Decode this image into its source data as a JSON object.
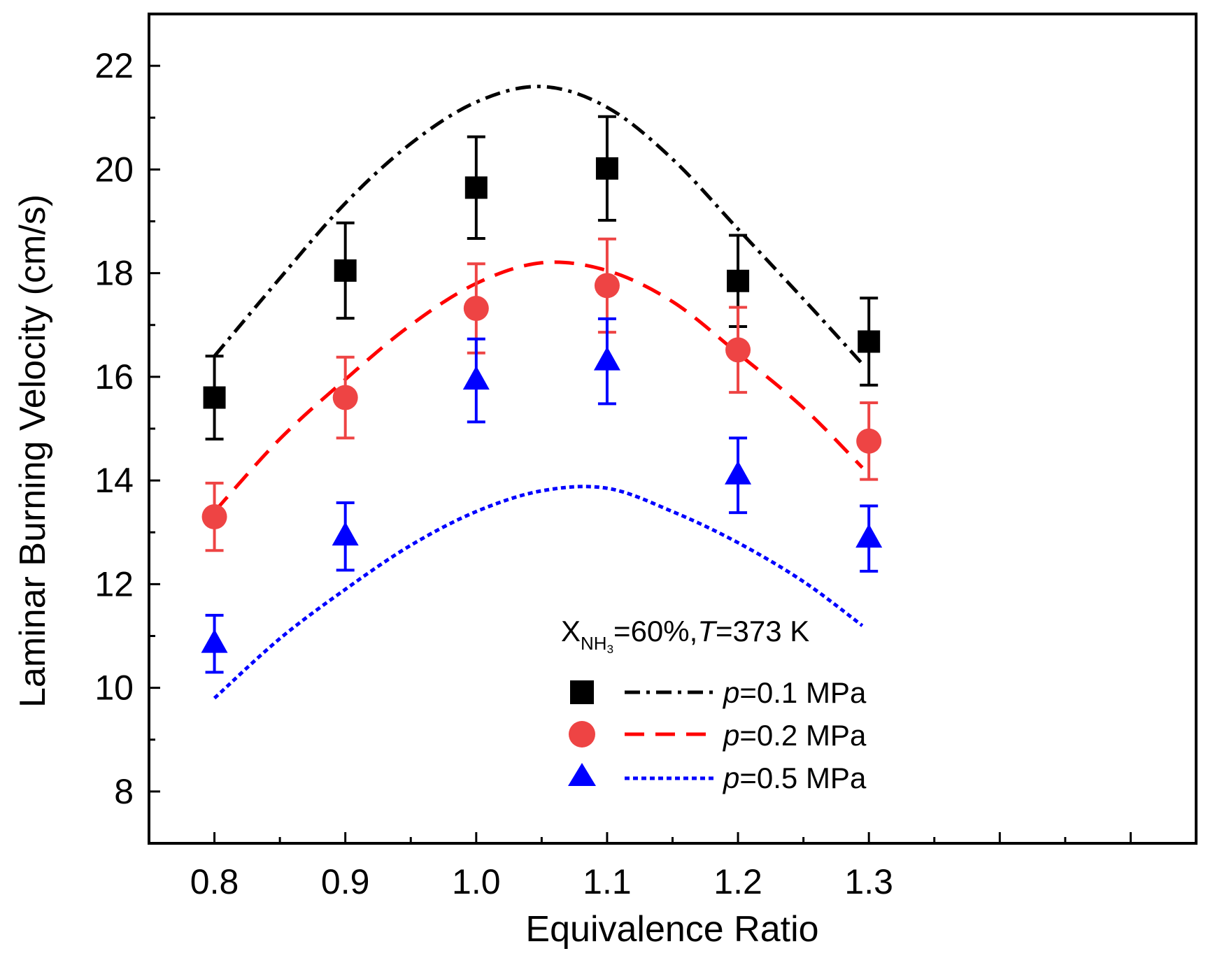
{
  "chart_data": {
    "type": "scatter",
    "xlabel": "Equivalence Ratio",
    "ylabel": "Laminar Burning Velocity (cm/s)",
    "xlim": [
      0.75,
      1.55
    ],
    "ylim": [
      7.0,
      23.0
    ],
    "x_ticks": [
      0.8,
      0.9,
      1.0,
      1.1,
      1.2,
      1.3
    ],
    "x_tick_labels": [
      "0.8",
      "0.9",
      "1.0",
      "1.1",
      "1.2",
      "1.3"
    ],
    "y_ticks": [
      8,
      10,
      12,
      14,
      16,
      18,
      20,
      22
    ],
    "y_tick_labels": [
      "8",
      "10",
      "12",
      "14",
      "16",
      "18",
      "20",
      "22"
    ],
    "annotation": {
      "prefix": "X",
      "subscript": "NH",
      "subsubscript": "3",
      "mid": "=60%,",
      "T_symbol": "T",
      "suffix": "=373 K"
    },
    "legend_position": "center-right",
    "series": [
      {
        "name": "p=0.1 MPa",
        "label_symbol": "p",
        "label_rest": "=0.1 MPa",
        "marker": "square",
        "line_style": "dash-dot",
        "color": "#000000",
        "line_color": "#000000",
        "x": [
          0.8,
          0.9,
          1.0,
          1.1,
          1.2,
          1.3
        ],
        "y": [
          15.6,
          18.05,
          19.65,
          20.02,
          17.85,
          16.68
        ],
        "err": [
          0.8,
          0.92,
          0.98,
          1.0,
          0.88,
          0.84
        ],
        "model_x": [
          0.8,
          0.85,
          0.9,
          0.95,
          1.0,
          1.05,
          1.1,
          1.15,
          1.2,
          1.25,
          1.295
        ],
        "model_y": [
          16.4,
          17.9,
          19.35,
          20.5,
          21.3,
          21.6,
          21.2,
          20.2,
          18.85,
          17.5,
          16.25
        ]
      },
      {
        "name": "p=0.2 MPa",
        "label_symbol": "p",
        "label_rest": "=0.2 MPa",
        "marker": "circle",
        "line_style": "dashed",
        "color": "#ee4444",
        "line_color": "#ff0000",
        "x": [
          0.8,
          0.9,
          1.0,
          1.1,
          1.2,
          1.3
        ],
        "y": [
          13.3,
          15.6,
          17.32,
          17.76,
          16.52,
          14.76
        ],
        "err": [
          0.65,
          0.78,
          0.86,
          0.9,
          0.82,
          0.74
        ],
        "model_x": [
          0.8,
          0.85,
          0.9,
          0.95,
          1.0,
          1.05,
          1.1,
          1.15,
          1.2,
          1.25,
          1.295
        ],
        "model_y": [
          13.4,
          14.8,
          15.95,
          17.0,
          17.8,
          18.2,
          18.05,
          17.45,
          16.45,
          15.4,
          14.25
        ]
      },
      {
        "name": "p=0.5 MPa",
        "label_symbol": "p",
        "label_rest": "=0.5 MPa",
        "marker": "triangle",
        "line_style": "dotted",
        "color": "#0000ff",
        "line_color": "#0000ff",
        "x": [
          0.8,
          0.9,
          1.0,
          1.1,
          1.2,
          1.3
        ],
        "y": [
          10.85,
          12.92,
          15.93,
          16.3,
          14.1,
          12.88
        ],
        "err": [
          0.55,
          0.65,
          0.8,
          0.82,
          0.72,
          0.63
        ],
        "model_x": [
          0.8,
          0.85,
          0.9,
          0.95,
          1.0,
          1.05,
          1.1,
          1.15,
          1.2,
          1.25,
          1.295
        ],
        "model_y": [
          9.8,
          10.95,
          11.9,
          12.75,
          13.4,
          13.8,
          13.85,
          13.4,
          12.8,
          12.05,
          11.2
        ]
      }
    ]
  }
}
